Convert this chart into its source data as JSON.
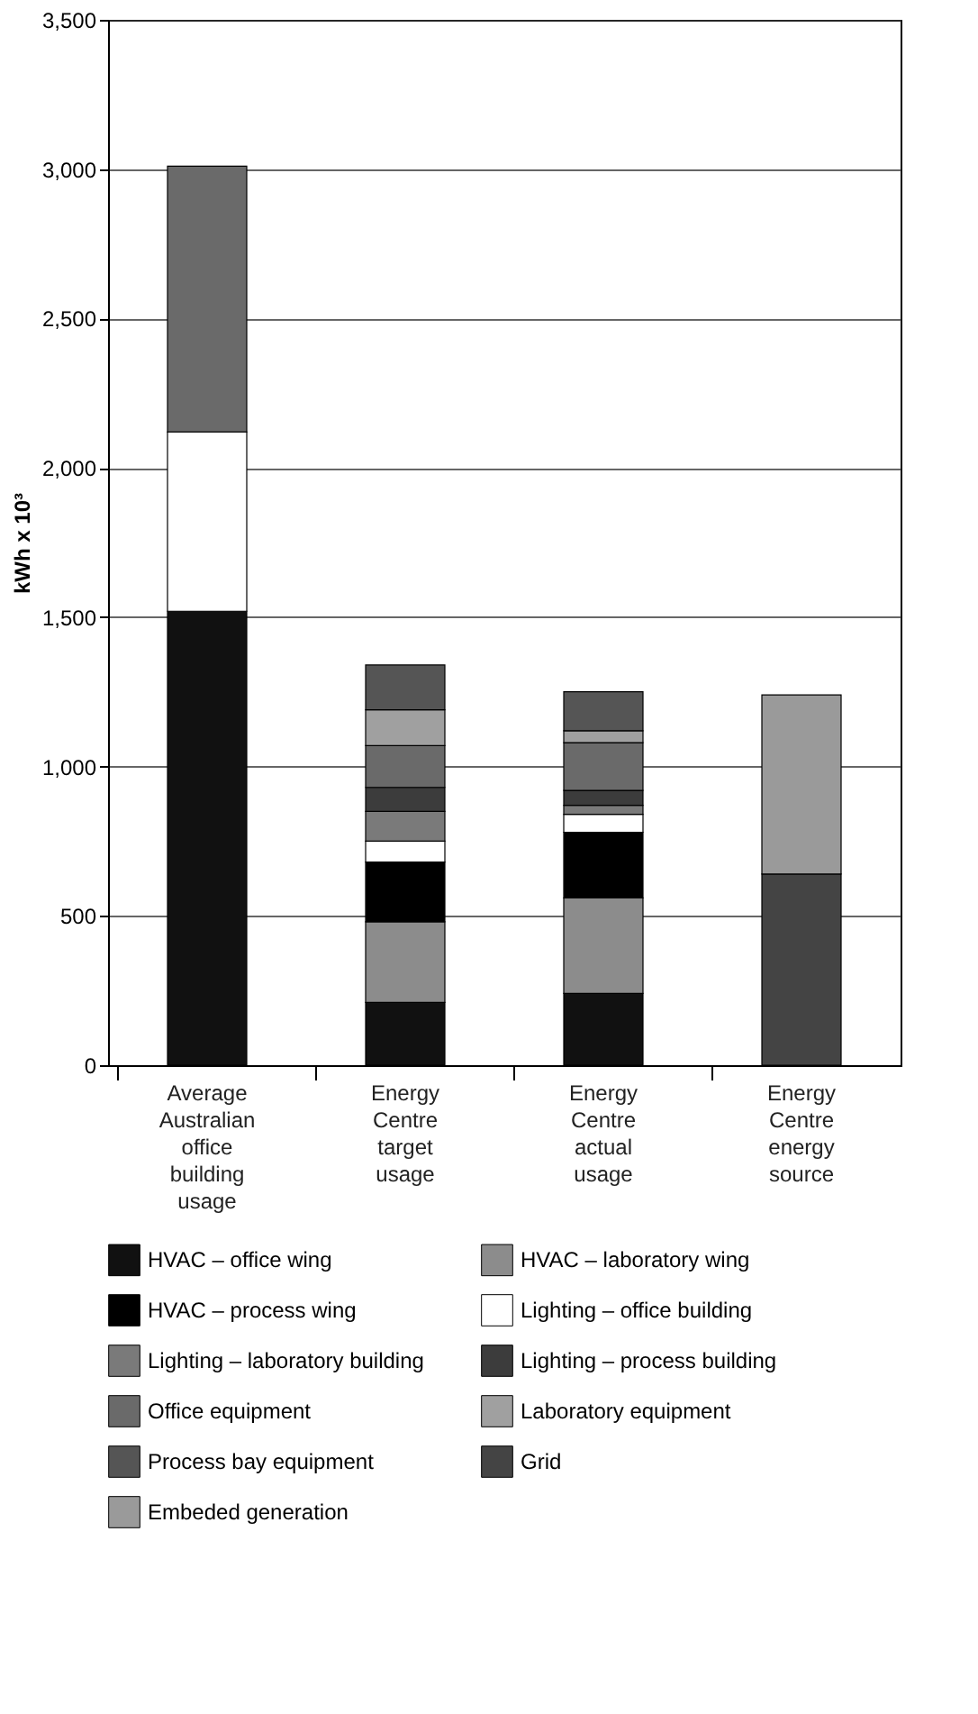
{
  "chart_data": {
    "type": "bar",
    "stacked": true,
    "ylabel": "kWh x 10³",
    "categories": [
      "Average Australian office building usage",
      "Energy Centre target usage",
      "Energy Centre actual usage",
      "Energy Centre energy source"
    ],
    "series": [
      {
        "name": "HVAC – office wing",
        "color": "#111111",
        "values": [
          1520,
          210,
          240,
          null
        ]
      },
      {
        "name": "HVAC – laboratory wing",
        "color": "#8c8c8c",
        "values": [
          null,
          270,
          320,
          null
        ]
      },
      {
        "name": "HVAC – process wing",
        "color": "#000000",
        "values": [
          null,
          200,
          220,
          null
        ]
      },
      {
        "name": "Lighting – office building",
        "color": "#ffffff",
        "values": [
          600,
          70,
          60,
          null
        ]
      },
      {
        "name": "Lighting – laboratory building",
        "color": "#7a7a7a",
        "values": [
          null,
          100,
          30,
          null
        ]
      },
      {
        "name": "Lighting – process building",
        "color": "#3c3c3c",
        "values": [
          null,
          80,
          50,
          null
        ]
      },
      {
        "name": "Office equipment",
        "color": "#6a6a6a",
        "values": [
          890,
          140,
          160,
          null
        ]
      },
      {
        "name": "Laboratory equipment",
        "color": "#a0a0a0",
        "values": [
          null,
          120,
          40,
          null
        ]
      },
      {
        "name": "Process bay equipment",
        "color": "#555555",
        "values": [
          null,
          150,
          130,
          null
        ]
      },
      {
        "name": "Grid",
        "color": "#444444",
        "values": [
          null,
          null,
          null,
          640
        ]
      },
      {
        "name": "Embeded generation",
        "color": "#9a9a9a",
        "values": [
          null,
          null,
          null,
          600
        ]
      }
    ],
    "ylim": [
      0,
      3500
    ],
    "yticks": [
      0,
      {
        "value": 500,
        "label": "500"
      },
      {
        "value": 1000,
        "label": "1,000"
      },
      {
        "value": 1500,
        "label": "1,500"
      },
      {
        "value": 2000,
        "label": "2,000"
      },
      {
        "value": 2500,
        "label": "2,500"
      },
      {
        "value": 3000,
        "label": "3,000"
      },
      {
        "value": 3500,
        "label": "3,500"
      }
    ],
    "grid": "y",
    "legend": "bottom"
  }
}
